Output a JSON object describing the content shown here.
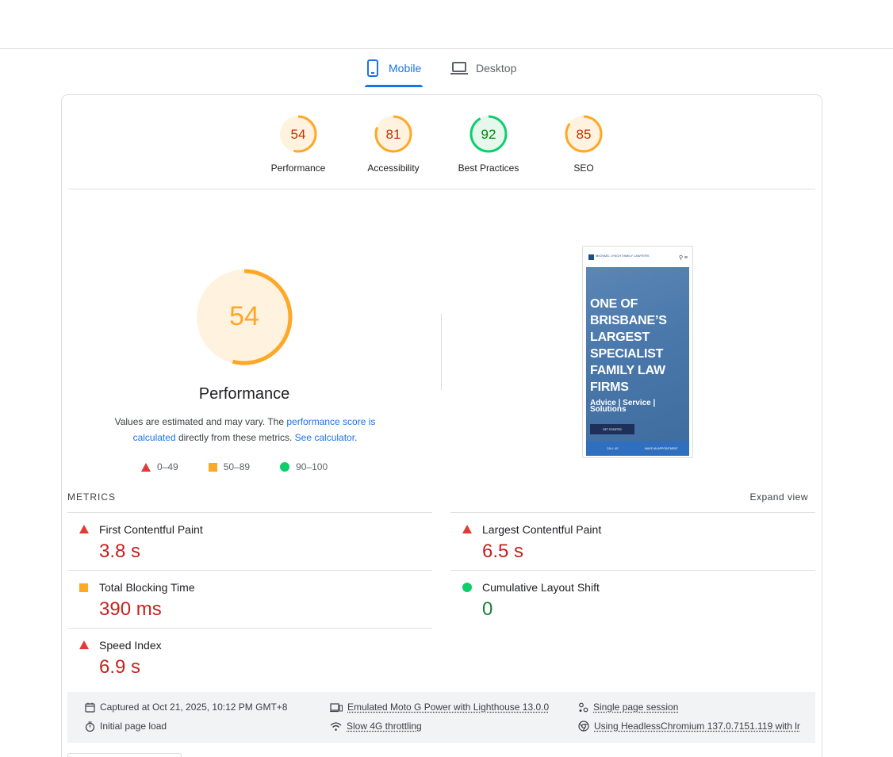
{
  "tabs": [
    {
      "label": "Mobile",
      "icon": "smartphone-icon",
      "active": true
    },
    {
      "label": "Desktop",
      "icon": "laptop-icon",
      "active": false
    }
  ],
  "categories": [
    {
      "score": "54",
      "label": "Performance",
      "color": "#ffa726",
      "text_color": "#c33300",
      "fill": "#fff3e0",
      "fraction": 0.54
    },
    {
      "score": "81",
      "label": "Accessibility",
      "color": "#ffa726",
      "text_color": "#c33300",
      "fill": "#fff3e0",
      "fraction": 0.81
    },
    {
      "score": "92",
      "label": "Best Practices",
      "color": "#0cce6b",
      "text_color": "#008800",
      "fill": "#e6f7ee",
      "fraction": 0.92
    },
    {
      "score": "85",
      "label": "SEO",
      "color": "#ffa726",
      "text_color": "#c33300",
      "fill": "#fff3e0",
      "fraction": 0.85
    }
  ],
  "performance": {
    "score": "54",
    "fraction": 0.54,
    "title": "Performance",
    "desc_before": "Values are estimated and may vary. The ",
    "desc_link1": "performance score is calculated",
    "desc_middle": " directly from these metrics. ",
    "desc_link2": "See calculator",
    "desc_after": "."
  },
  "legend": [
    {
      "range": "0–49",
      "shape": "triangle",
      "color": "#e53935"
    },
    {
      "range": "50–89",
      "shape": "square",
      "color": "#ffa726"
    },
    {
      "range": "90–100",
      "shape": "circle",
      "color": "#0cce6b"
    }
  ],
  "screenshot": {
    "logo_text": "MICHAEL LYNCH FAMILY LAWYERS",
    "headline": "ONE OF BRISBANE’S LARGEST SPECIALIST FAMILY LAW FIRMS",
    "subline": "Advice | Service | Solutions",
    "button": "GET STARTED",
    "footer_left": "CALL US",
    "footer_right": "MAKE AN APPOINTMENT"
  },
  "metrics": {
    "heading": "METRICS",
    "expand": "Expand view",
    "items": [
      {
        "name": "First Contentful Paint",
        "value": "3.8 s",
        "status": "fail"
      },
      {
        "name": "Largest Contentful Paint",
        "value": "6.5 s",
        "status": "fail"
      },
      {
        "name": "Total Blocking Time",
        "value": "390 ms",
        "status": "average"
      },
      {
        "name": "Cumulative Layout Shift",
        "value": "0",
        "status": "pass"
      },
      {
        "name": "Speed Index",
        "value": "6.9 s",
        "status": "fail"
      }
    ]
  },
  "run_info": {
    "captured": "Captured at Oct 21, 2025, 10:12 PM GMT+8",
    "load": "Initial page load",
    "device": "Emulated Moto G Power with Lighthouse 13.0.0",
    "throttling": "Slow 4G throttling",
    "session": "Single page session",
    "browser": "Using HeadlessChromium 137.0.7151.119 with lr"
  }
}
